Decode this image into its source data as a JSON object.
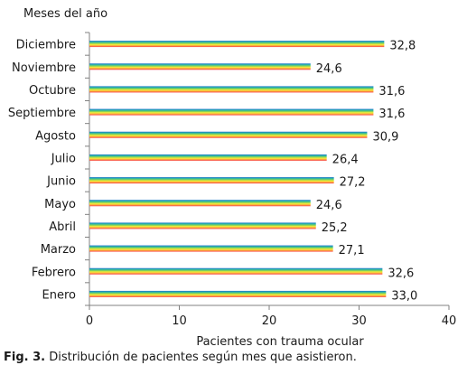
{
  "chart_data": {
    "type": "bar",
    "orientation": "horizontal",
    "categories": [
      "Diciembre",
      "Noviembre",
      "Octubre",
      "Septiembre",
      "Agosto",
      "Julio",
      "Junio",
      "Mayo",
      "Abril",
      "Marzo",
      "Febrero",
      "Enero"
    ],
    "values": [
      32.8,
      24.6,
      31.6,
      31.6,
      30.9,
      26.4,
      27.2,
      24.6,
      25.2,
      27.1,
      32.6,
      33.0
    ],
    "value_labels": [
      "32,8",
      "24,6",
      "31,6",
      "31,6",
      "30,9",
      "26,4",
      "27,2",
      "24,6",
      "25,2",
      "27,1",
      "32,6",
      "33,0"
    ],
    "ylabel": "Meses del año",
    "xlabel": "Pacientes con trauma ocular",
    "xlim": [
      0,
      40
    ],
    "xticks": [
      "0",
      "10",
      "20",
      "30",
      "40"
    ],
    "grid": false,
    "legend": "none",
    "bar_gradient": [
      "#1f6fd0",
      "#27b6a8",
      "#9bd84a",
      "#f7ef3a",
      "#fba23c",
      "#f7404f"
    ]
  },
  "caption": {
    "label": "Fig. 3.",
    "text": " Distribución de pacientes según mes que asistieron."
  }
}
